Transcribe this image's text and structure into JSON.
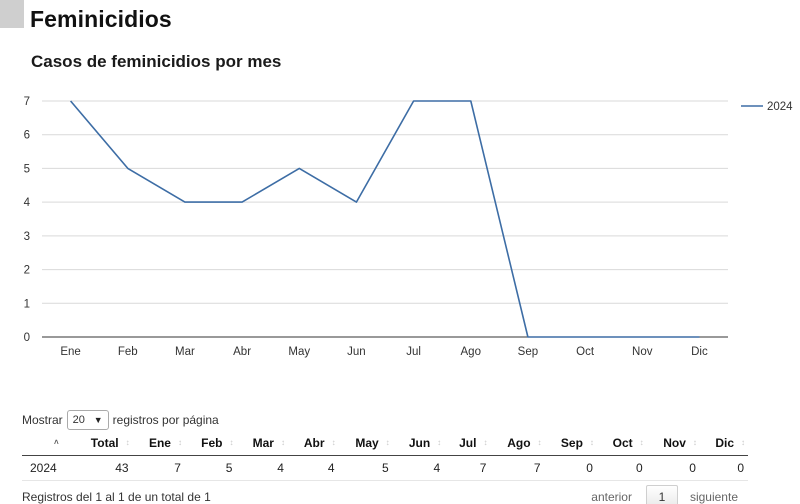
{
  "page_title": "Feminicidios",
  "chart_data": {
    "type": "line",
    "title": "Casos de feminicidios por mes",
    "categories": [
      "Ene",
      "Feb",
      "Mar",
      "Abr",
      "May",
      "Jun",
      "Jul",
      "Ago",
      "Sep",
      "Oct",
      "Nov",
      "Dic"
    ],
    "series": [
      {
        "name": "2024",
        "values": [
          7,
          5,
          4,
          4,
          5,
          4,
          7,
          7,
          0,
          0,
          0,
          0
        ],
        "color": "#3d6da5"
      }
    ],
    "y_ticks": [
      "0",
      "1",
      "2",
      "3",
      "4",
      "5",
      "6",
      "7"
    ],
    "ylim": [
      0,
      7
    ],
    "grid": true,
    "legend": "right"
  },
  "table": {
    "length_label_before": "Mostrar",
    "length_value": "20",
    "length_label_after": "registros por página",
    "headers": [
      "",
      "Total",
      "Ene",
      "Feb",
      "Mar",
      "Abr",
      "May",
      "Jun",
      "Jul",
      "Ago",
      "Sep",
      "Oct",
      "Nov",
      "Dic"
    ],
    "rows": [
      [
        "2024",
        "43",
        "7",
        "5",
        "4",
        "4",
        "5",
        "4",
        "7",
        "7",
        "0",
        "0",
        "0",
        "0"
      ]
    ],
    "info": "Registros del 1 al 1 de un total de 1",
    "pagination": {
      "previous": "anterior",
      "current": "1",
      "next": "siguiente"
    }
  }
}
